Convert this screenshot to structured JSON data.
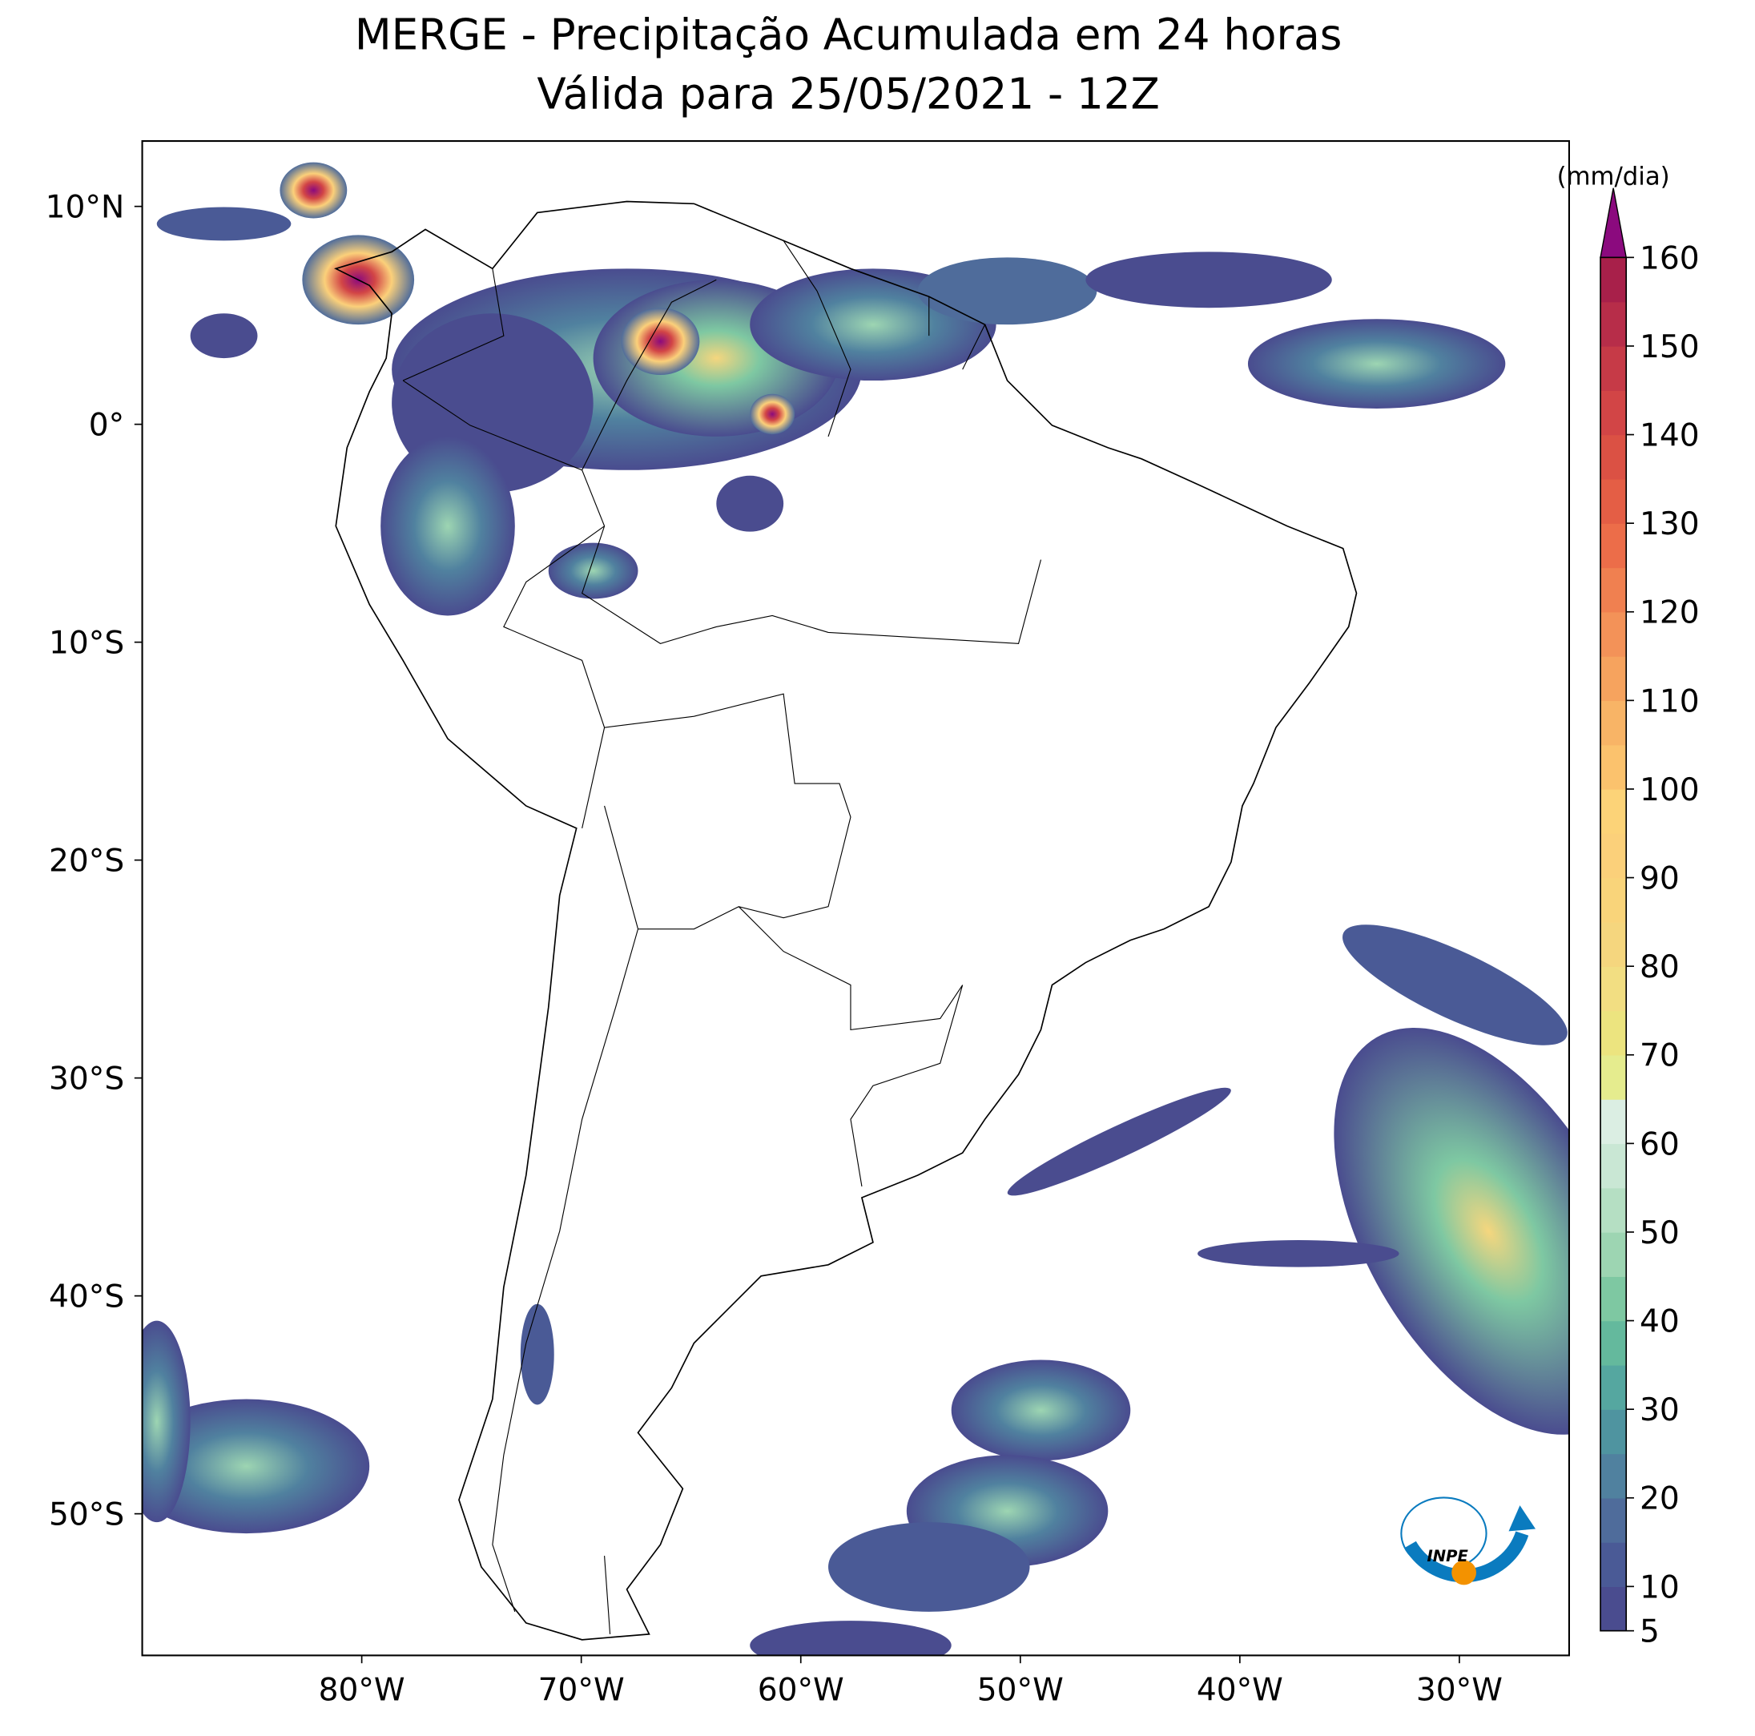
{
  "chart_data": {
    "type": "map",
    "title": "MERGE - Precipitação Acumulada em 24 horas",
    "subtitle": "Válida para 25/05/2021 - 12Z",
    "xlim": [
      -90,
      -25
    ],
    "ylim": [
      -56.5,
      13
    ],
    "xticks": [
      {
        "value": -80,
        "label": "80°W"
      },
      {
        "value": -70,
        "label": "70°W"
      },
      {
        "value": -60,
        "label": "60°W"
      },
      {
        "value": -50,
        "label": "50°W"
      },
      {
        "value": -40,
        "label": "40°W"
      },
      {
        "value": -30,
        "label": "30°W"
      }
    ],
    "yticks": [
      {
        "value": 10,
        "label": "10°N"
      },
      {
        "value": 0,
        "label": "0°"
      },
      {
        "value": -10,
        "label": "10°S"
      },
      {
        "value": -20,
        "label": "20°S"
      },
      {
        "value": -30,
        "label": "30°S"
      },
      {
        "value": -40,
        "label": "40°S"
      },
      {
        "value": -50,
        "label": "50°S"
      }
    ],
    "colorbar": {
      "label": "(mm/dia)",
      "lim": [
        5,
        160
      ],
      "ticks": [
        5,
        10,
        20,
        30,
        40,
        50,
        60,
        70,
        80,
        90,
        100,
        110,
        120,
        130,
        140,
        150,
        160
      ],
      "colors": [
        "#4a4c8f",
        "#4a5a96",
        "#4f6c9b",
        "#50819f",
        "#4f94a0",
        "#55a7a0",
        "#64b99d",
        "#7ec8a2",
        "#9dd5b2",
        "#b5dfc3",
        "#c9e7d4",
        "#dbeee3",
        "#e5ec8e",
        "#ece47f",
        "#f2de82",
        "#f5d67e",
        "#f9d47a",
        "#fbd07a",
        "#fcd378",
        "#fbc26d",
        "#f8b466",
        "#f6a35e",
        "#f39258",
        "#f08050",
        "#ec6d49",
        "#e45e45",
        "#db5144",
        "#d24546",
        "#c63a47",
        "#b72d49",
        "#a8204a"
      ],
      "extend_color": "#8b0a7e"
    },
    "logo_text": "INPE"
  }
}
